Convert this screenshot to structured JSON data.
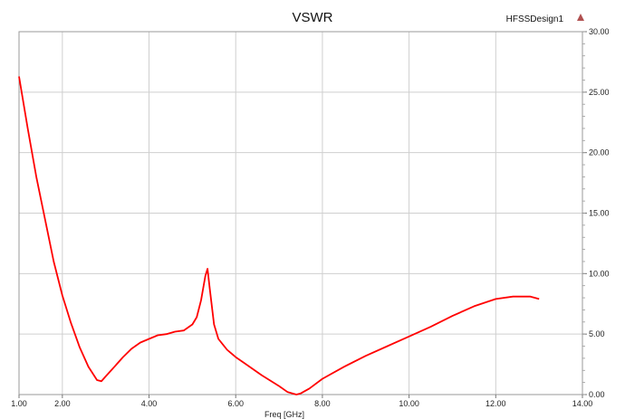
{
  "chart_data": {
    "type": "line",
    "title": "VSWR",
    "design_label": "HFSSDesign1",
    "xlabel": "Freq [GHz]",
    "ylabel": "",
    "xlim": [
      1,
      14
    ],
    "ylim": [
      0,
      30
    ],
    "x_ticks": [
      "1.00",
      "2.00",
      "4.00",
      "6.00",
      "8.00",
      "10.00",
      "12.00",
      "14.00"
    ],
    "y_ticks": [
      "0.00",
      "5.00",
      "10.00",
      "15.00",
      "20.00",
      "25.00",
      "30.00"
    ],
    "x_tick_values": [
      1,
      2,
      4,
      6,
      8,
      10,
      12,
      14
    ],
    "y_tick_values": [
      0,
      5,
      10,
      15,
      20,
      25,
      30
    ],
    "grid": true,
    "y_axis_side": "right",
    "series": [
      {
        "color": "#ff0000",
        "x": [
          1.0,
          1.2,
          1.4,
          1.6,
          1.8,
          2.0,
          2.2,
          2.4,
          2.6,
          2.8,
          2.9,
          3.0,
          3.2,
          3.4,
          3.6,
          3.8,
          4.0,
          4.2,
          4.4,
          4.6,
          4.8,
          5.0,
          5.1,
          5.2,
          5.3,
          5.35,
          5.4,
          5.5,
          5.6,
          5.8,
          6.0,
          6.2,
          6.6,
          7.0,
          7.2,
          7.4,
          7.5,
          7.7,
          8.0,
          8.5,
          9.0,
          9.5,
          10.0,
          10.5,
          11.0,
          11.5,
          12.0,
          12.4,
          12.8,
          13.0
        ],
        "y": [
          26.3,
          22.0,
          18.0,
          14.5,
          11.0,
          8.2,
          5.9,
          3.9,
          2.3,
          1.2,
          1.1,
          1.5,
          2.3,
          3.1,
          3.8,
          4.3,
          4.6,
          4.9,
          5.0,
          5.2,
          5.3,
          5.8,
          6.4,
          7.8,
          9.8,
          10.4,
          8.8,
          5.8,
          4.6,
          3.7,
          3.1,
          2.6,
          1.6,
          0.7,
          0.2,
          0.0,
          0.1,
          0.5,
          1.3,
          2.3,
          3.2,
          4.0,
          4.8,
          5.6,
          6.5,
          7.3,
          7.9,
          8.1,
          8.1,
          7.9
        ]
      }
    ]
  }
}
